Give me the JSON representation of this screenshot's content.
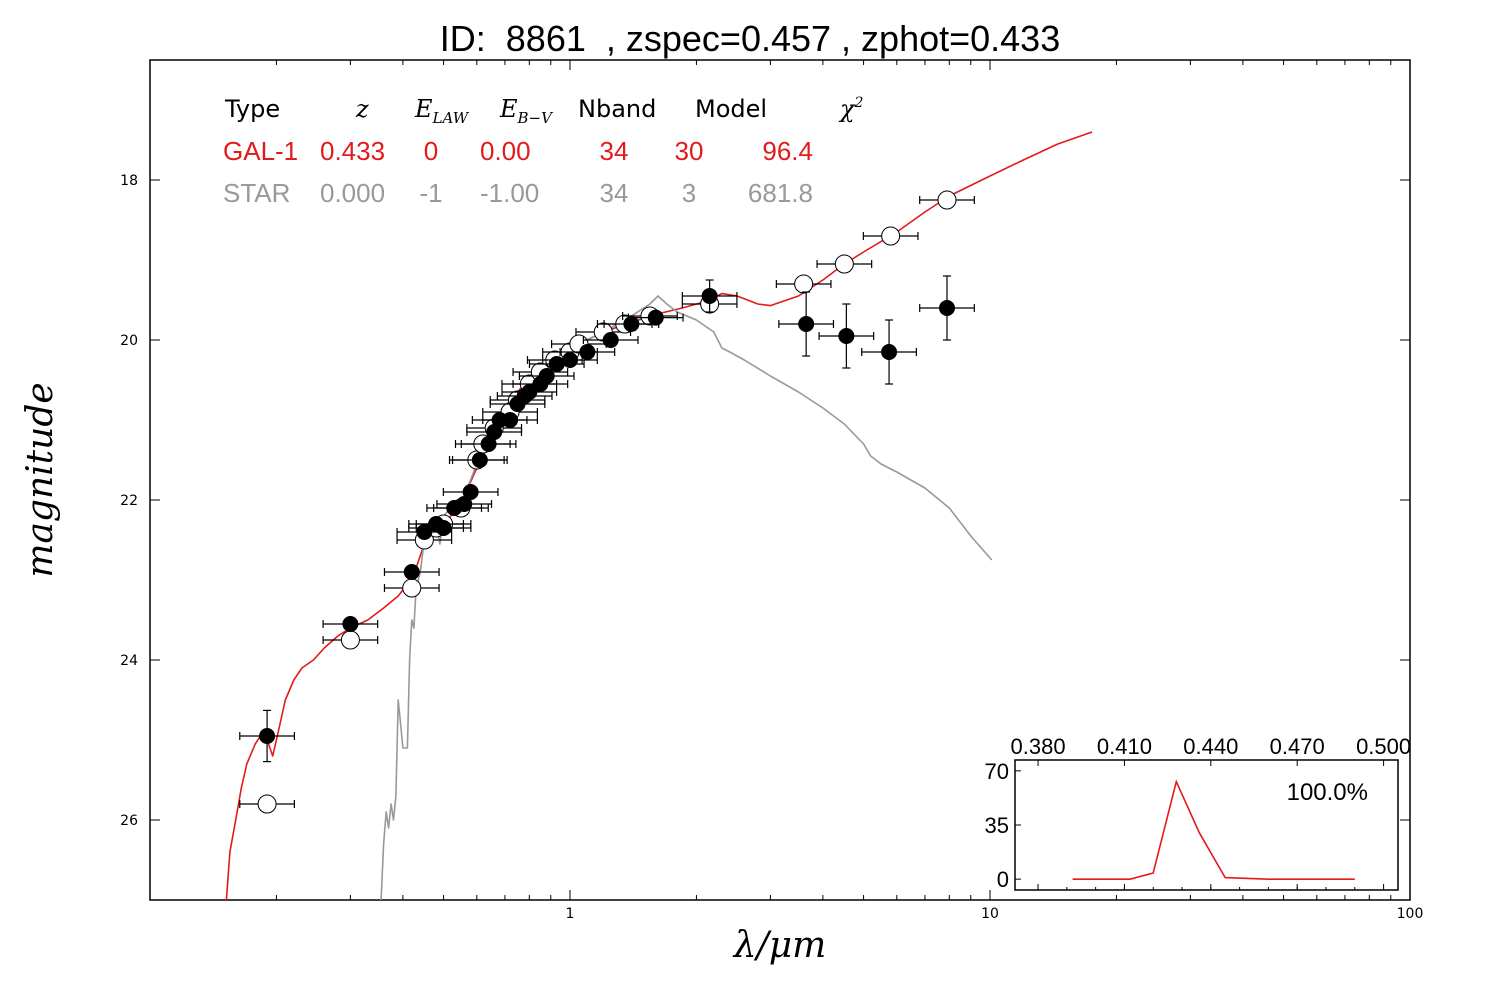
{
  "title": "ID:  8861  , zspec=0.457 , zphot=0.433",
  "chart_data": {
    "type": "scatter",
    "xlabel": "λ/μm",
    "ylabel": "magnitude",
    "xscale": "log",
    "xlim": [
      0.1,
      100
    ],
    "ylim": [
      27.0,
      16.5
    ],
    "x_ticks": [
      1,
      10,
      100
    ],
    "x_tick_labels": [
      "1",
      "10",
      "100"
    ],
    "y_ticks": [
      18,
      20,
      22,
      24,
      26
    ],
    "y_tick_labels": [
      "18",
      "20",
      "22",
      "24",
      "26"
    ],
    "colors": {
      "galaxy": "#e31a1c",
      "star": "#999999",
      "points": "#000000"
    },
    "table": {
      "headers": [
        "Type",
        "z",
        "E_LAW",
        "E_B-V",
        "Nband",
        "Model",
        "χ2"
      ],
      "rows": [
        {
          "cells": [
            "GAL-1",
            "0.433",
            "0",
            "0.00",
            "34",
            "30",
            "96.4"
          ],
          "color": "#e31a1c"
        },
        {
          "cells": [
            "STAR",
            "0.000",
            "-1",
            "-1.00",
            "34",
            "3",
            "681.8"
          ],
          "color": "#999999"
        }
      ]
    },
    "series": [
      {
        "kind": "model",
        "color": "#e31a1c",
        "points": [
          [
            0.152,
            27.0
          ],
          [
            0.155,
            26.4
          ],
          [
            0.16,
            26.0
          ],
          [
            0.165,
            25.6
          ],
          [
            0.17,
            25.3
          ],
          [
            0.178,
            25.05
          ],
          [
            0.185,
            24.92
          ],
          [
            0.19,
            25.0
          ],
          [
            0.196,
            25.2
          ],
          [
            0.2,
            25.0
          ],
          [
            0.205,
            24.75
          ],
          [
            0.21,
            24.5
          ],
          [
            0.22,
            24.25
          ],
          [
            0.23,
            24.1
          ],
          [
            0.245,
            24.0
          ],
          [
            0.26,
            23.85
          ],
          [
            0.28,
            23.7
          ],
          [
            0.3,
            23.6
          ],
          [
            0.33,
            23.5
          ],
          [
            0.36,
            23.35
          ],
          [
            0.39,
            23.2
          ],
          [
            0.41,
            23.05
          ],
          [
            0.43,
            22.85
          ],
          [
            0.45,
            22.55
          ],
          [
            0.48,
            22.4
          ],
          [
            0.5,
            22.3
          ],
          [
            0.53,
            22.15
          ],
          [
            0.56,
            21.95
          ],
          [
            0.6,
            21.6
          ],
          [
            0.63,
            21.25
          ],
          [
            0.67,
            21.0
          ],
          [
            0.72,
            20.75
          ],
          [
            0.78,
            20.55
          ],
          [
            0.85,
            20.35
          ],
          [
            0.95,
            20.2
          ],
          [
            1.05,
            20.05
          ],
          [
            1.2,
            19.9
          ],
          [
            1.4,
            19.78
          ],
          [
            1.6,
            19.68
          ],
          [
            1.85,
            19.6
          ],
          [
            2.1,
            19.52
          ],
          [
            2.3,
            19.42
          ],
          [
            2.5,
            19.45
          ],
          [
            2.8,
            19.55
          ],
          [
            3.0,
            19.57
          ],
          [
            3.5,
            19.45
          ],
          [
            4.0,
            19.25
          ],
          [
            4.5,
            19.05
          ],
          [
            5.0,
            18.9
          ],
          [
            6.0,
            18.65
          ],
          [
            7.0,
            18.4
          ],
          [
            8.0,
            18.2
          ],
          [
            10.0,
            17.95
          ],
          [
            12.0,
            17.75
          ],
          [
            14.5,
            17.55
          ],
          [
            17.5,
            17.4
          ]
        ]
      },
      {
        "kind": "model",
        "color": "#999999",
        "points": [
          [
            0.355,
            27.0
          ],
          [
            0.36,
            26.3
          ],
          [
            0.365,
            25.9
          ],
          [
            0.37,
            26.1
          ],
          [
            0.375,
            25.8
          ],
          [
            0.38,
            26.0
          ],
          [
            0.385,
            25.7
          ],
          [
            0.39,
            24.5
          ],
          [
            0.395,
            24.8
          ],
          [
            0.4,
            25.1
          ],
          [
            0.41,
            25.1
          ],
          [
            0.415,
            24.0
          ],
          [
            0.42,
            23.5
          ],
          [
            0.425,
            23.6
          ],
          [
            0.43,
            23.1
          ],
          [
            0.44,
            22.9
          ],
          [
            0.45,
            22.5
          ],
          [
            0.47,
            22.4
          ],
          [
            0.48,
            22.3
          ],
          [
            0.49,
            22.55
          ],
          [
            0.5,
            22.2
          ],
          [
            0.53,
            22.05
          ],
          [
            0.56,
            21.95
          ],
          [
            0.6,
            21.55
          ],
          [
            0.65,
            21.2
          ],
          [
            0.7,
            20.95
          ],
          [
            0.75,
            20.7
          ],
          [
            0.8,
            20.55
          ],
          [
            0.9,
            20.35
          ],
          [
            1.0,
            20.15
          ],
          [
            1.1,
            20.0
          ],
          [
            1.25,
            19.85
          ],
          [
            1.4,
            19.7
          ],
          [
            1.55,
            19.55
          ],
          [
            1.62,
            19.45
          ],
          [
            1.7,
            19.55
          ],
          [
            1.8,
            19.65
          ],
          [
            2.0,
            19.75
          ],
          [
            2.2,
            19.9
          ],
          [
            2.3,
            20.1
          ],
          [
            2.4,
            20.15
          ],
          [
            2.6,
            20.25
          ],
          [
            3.0,
            20.45
          ],
          [
            3.5,
            20.65
          ],
          [
            4.0,
            20.85
          ],
          [
            4.5,
            21.05
          ],
          [
            5.0,
            21.3
          ],
          [
            5.2,
            21.45
          ],
          [
            5.5,
            21.55
          ],
          [
            6.0,
            21.65
          ],
          [
            7.0,
            21.85
          ],
          [
            8.0,
            22.1
          ],
          [
            9.0,
            22.45
          ],
          [
            10.1,
            22.75
          ]
        ]
      },
      {
        "kind": "model_magnitudes",
        "marker": "open-circle",
        "points": [
          [
            0.19,
            25.8
          ],
          [
            0.3,
            23.75
          ],
          [
            0.42,
            23.1
          ],
          [
            0.45,
            22.5
          ],
          [
            0.48,
            22.35
          ],
          [
            0.5,
            22.3
          ],
          [
            0.55,
            22.1
          ],
          [
            0.6,
            21.5
          ],
          [
            0.62,
            21.3
          ],
          [
            0.66,
            21.1
          ],
          [
            0.72,
            20.9
          ],
          [
            0.75,
            20.75
          ],
          [
            0.8,
            20.55
          ],
          [
            0.85,
            20.4
          ],
          [
            0.92,
            20.25
          ],
          [
            1.0,
            20.15
          ],
          [
            1.05,
            20.05
          ],
          [
            1.2,
            19.9
          ],
          [
            1.35,
            19.8
          ],
          [
            1.55,
            19.7
          ],
          [
            2.15,
            19.55
          ],
          [
            3.6,
            19.3
          ],
          [
            4.5,
            19.05
          ],
          [
            5.8,
            18.7
          ],
          [
            7.9,
            18.25
          ]
        ]
      },
      {
        "kind": "observed",
        "marker": "filled-circle",
        "points": [
          [
            0.19,
            24.95
          ],
          [
            0.3,
            23.55
          ],
          [
            0.42,
            22.9
          ],
          [
            0.45,
            22.4
          ],
          [
            0.48,
            22.3
          ],
          [
            0.5,
            22.35
          ],
          [
            0.53,
            22.1
          ],
          [
            0.56,
            22.05
          ],
          [
            0.58,
            21.9
          ],
          [
            0.61,
            21.5
          ],
          [
            0.64,
            21.3
          ],
          [
            0.66,
            21.15
          ],
          [
            0.68,
            21.0
          ],
          [
            0.72,
            21.0
          ],
          [
            0.75,
            20.8
          ],
          [
            0.78,
            20.7
          ],
          [
            0.8,
            20.65
          ],
          [
            0.85,
            20.55
          ],
          [
            0.88,
            20.45
          ],
          [
            0.93,
            20.3
          ],
          [
            1.0,
            20.25
          ],
          [
            1.1,
            20.15
          ],
          [
            1.25,
            20.0
          ],
          [
            1.4,
            19.8
          ],
          [
            1.6,
            19.72
          ],
          [
            2.15,
            19.45
          ],
          [
            3.65,
            19.8
          ],
          [
            4.55,
            19.95
          ],
          [
            5.75,
            20.15
          ],
          [
            7.9,
            19.6
          ]
        ]
      }
    ],
    "inset": {
      "type": "line",
      "color": "#e31a1c",
      "x_ticks": [
        0.38,
        0.41,
        0.44,
        0.47,
        0.5
      ],
      "x_tick_labels": [
        "0.380",
        "0.410",
        "0.440",
        "0.470",
        "0.500"
      ],
      "y_ticks": [
        0,
        35,
        70
      ],
      "y_tick_labels": [
        "0",
        "35",
        "70"
      ],
      "xlim": [
        0.372,
        0.505
      ],
      "ylim": [
        -7,
        77
      ],
      "label": "100.0%",
      "points": [
        [
          0.392,
          0
        ],
        [
          0.412,
          0
        ],
        [
          0.42,
          4
        ],
        [
          0.428,
          63
        ],
        [
          0.436,
          30
        ],
        [
          0.445,
          1
        ],
        [
          0.46,
          0
        ],
        [
          0.49,
          0
        ]
      ]
    }
  }
}
